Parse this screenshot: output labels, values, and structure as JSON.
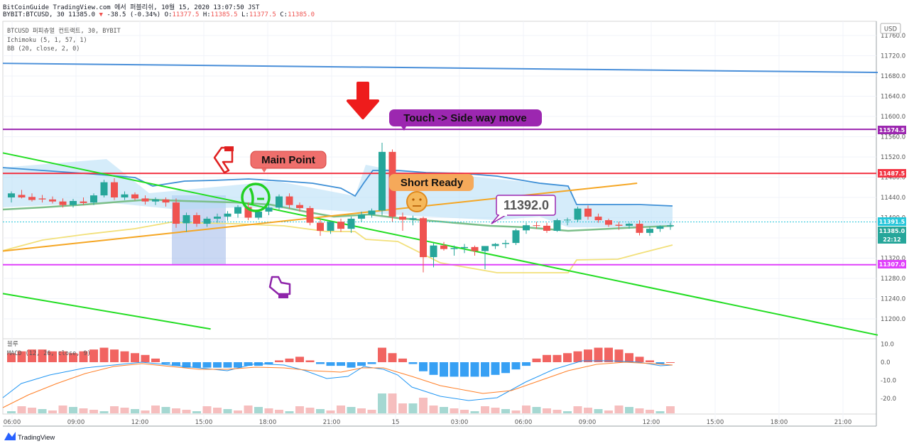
{
  "header": {
    "line1": "BitCoinGuide TradingView.com 에서 퍼블리쉬, 10월 15, 2020 13:07:50 JST",
    "symbol": "BYBIT:BTCUSD, 30",
    "price": "11385.0",
    "change": "-38.5 (-0.34%)",
    "o": "11377.5",
    "h": "11385.5",
    "l": "11377.5",
    "c": "11385.0"
  },
  "legend": {
    "title": "BTCUSD 퍼피츄얼 컨트랙트, 30, BYBIT",
    "ichimoku": "Ichimoku (5, 1, 57, 1)",
    "bb": "BB (20, close, 2, 0)",
    "macd": "MACD (12, 26, close, 9)",
    "macd_title": "블루"
  },
  "currency": "USD",
  "annotations": {
    "touch": "Touch -> Side way move",
    "main_point": "Main Point",
    "short_ready": "Short Ready",
    "price_box": "11392.0"
  },
  "price_tags": {
    "purple": "11574.5",
    "red": "11487.5",
    "cyan": "11391.5",
    "last": "11385.0",
    "countdown": "22:12",
    "magenta": "11307.0"
  },
  "footer": {
    "brand": "TradingView"
  },
  "colors": {
    "up": "#26a69a",
    "down": "#ef5350",
    "purple": "#9c27b0",
    "red": "#f23645",
    "magenta": "#e040fb",
    "blue": "#4a90e2",
    "green": "#22dd22",
    "orange": "#f5a623"
  },
  "chart_data": [
    {
      "type": "candlestick",
      "title": "BTCUSD 퍼피츄얼 컨트랙트, 30, BYBIT",
      "x_ticks": [
        "06:00",
        "09:00",
        "12:00",
        "15:00",
        "18:00",
        "21:00",
        "15",
        "03:00",
        "06:00",
        "09:00",
        "12:00",
        "15:00",
        "18:00",
        "21:00"
      ],
      "y_ticks": [
        11200,
        11240,
        11280,
        11320,
        11360,
        11400,
        11440,
        11480,
        11520,
        11560,
        11600,
        11640,
        11680,
        11720,
        11760
      ],
      "ylim": [
        11180,
        11775
      ],
      "ohlc": [
        [
          11440,
          11452,
          11430,
          11448
        ],
        [
          11445,
          11455,
          11438,
          11440
        ],
        [
          11441,
          11448,
          11432,
          11435
        ],
        [
          11438,
          11445,
          11430,
          11436
        ],
        [
          11436,
          11442,
          11428,
          11432
        ],
        [
          11432,
          11438,
          11420,
          11425
        ],
        [
          11425,
          11437,
          11420,
          11433
        ],
        [
          11432,
          11440,
          11425,
          11429
        ],
        [
          11430,
          11448,
          11425,
          11444
        ],
        [
          11444,
          11475,
          11440,
          11470
        ],
        [
          11470,
          11478,
          11435,
          11440
        ],
        [
          11440,
          11452,
          11435,
          11446
        ],
        [
          11446,
          11450,
          11434,
          11438
        ],
        [
          11438,
          11444,
          11426,
          11432
        ],
        [
          11432,
          11440,
          11425,
          11436
        ],
        [
          11436,
          11440,
          11422,
          11430
        ],
        [
          11430,
          11438,
          11380,
          11388
        ],
        [
          11389,
          11410,
          11372,
          11405
        ],
        [
          11405,
          11410,
          11382,
          11388
        ],
        [
          11388,
          11402,
          11382,
          11398
        ],
        [
          11398,
          11408,
          11390,
          11402
        ],
        [
          11402,
          11413,
          11394,
          11408
        ],
        [
          11408,
          11425,
          11400,
          11421
        ],
        [
          11421,
          11430,
          11395,
          11400
        ],
        [
          11400,
          11416,
          11396,
          11412
        ],
        [
          11412,
          11428,
          11405,
          11420
        ],
        [
          11420,
          11446,
          11416,
          11442
        ],
        [
          11442,
          11448,
          11418,
          11425
        ],
        [
          11425,
          11430,
          11412,
          11419
        ],
        [
          11419,
          11423,
          11385,
          11390
        ],
        [
          11390,
          11398,
          11364,
          11374
        ],
        [
          11374,
          11393,
          11368,
          11392
        ],
        [
          11392,
          11398,
          11372,
          11378
        ],
        [
          11378,
          11402,
          11370,
          11398
        ],
        [
          11398,
          11412,
          11392,
          11406
        ],
        [
          11406,
          11418,
          11400,
          11414
        ],
        [
          11414,
          11548,
          11405,
          11530
        ],
        [
          11530,
          11535,
          11392,
          11402
        ],
        [
          11402,
          11410,
          11374,
          11396
        ],
        [
          11396,
          11404,
          11385,
          11399
        ],
        [
          11399,
          11402,
          11292,
          11322
        ],
        [
          11322,
          11350,
          11302,
          11345
        ],
        [
          11345,
          11352,
          11335,
          11338
        ],
        [
          11338,
          11345,
          11325,
          11340
        ],
        [
          11340,
          11348,
          11330,
          11342
        ],
        [
          11342,
          11345,
          11325,
          11334
        ],
        [
          11334,
          11340,
          11298,
          11344
        ],
        [
          11344,
          11350,
          11338,
          11348
        ],
        [
          11348,
          11356,
          11340,
          11350
        ],
        [
          11350,
          11378,
          11346,
          11375
        ],
        [
          11375,
          11390,
          11368,
          11385
        ],
        [
          11385,
          11392,
          11378,
          11384
        ],
        [
          11384,
          11390,
          11370,
          11374
        ],
        [
          11374,
          11398,
          11372,
          11395
        ],
        [
          11395,
          11400,
          11385,
          11396
        ],
        [
          11396,
          11422,
          11392,
          11418
        ],
        [
          11418,
          11424,
          11396,
          11402
        ],
        [
          11402,
          11408,
          11390,
          11395
        ],
        [
          11395,
          11398,
          11382,
          11386
        ],
        [
          11386,
          11392,
          11376,
          11384
        ],
        [
          11384,
          11390,
          11378,
          11388
        ],
        [
          11388,
          11395,
          11365,
          11370
        ],
        [
          11370,
          11382,
          11364,
          11378
        ],
        [
          11378,
          11385,
          11372,
          11383
        ],
        [
          11383,
          11390,
          11376,
          11385
        ]
      ],
      "lines": {
        "resistance_blue": [
          [
            0,
            11705
          ],
          [
            80,
            11687
          ]
        ],
        "purple_level": 11574.5,
        "red_level": 11487.5,
        "magenta_level": 11307.0,
        "cyan_level": 11391.5,
        "green_trend_upper": [
          [
            0,
            11528
          ],
          [
            80,
            11168
          ]
        ],
        "green_trend_lower": [
          [
            0,
            11250
          ],
          [
            19,
            11180
          ]
        ],
        "orange_trend": [
          [
            0,
            11334
          ],
          [
            58,
            11468
          ]
        ]
      }
    },
    {
      "type": "bar",
      "title": "MACD (12, 26, close, 9)",
      "y_ticks": [
        -20.0,
        -10.0,
        0.0,
        10.0
      ],
      "ylim": [
        -27,
        13
      ],
      "histogram": [
        5,
        6,
        7,
        7,
        6,
        6,
        5,
        6,
        7,
        8,
        7,
        6,
        5,
        4,
        2,
        -1,
        -2,
        -3,
        -3,
        -3,
        -3,
        -3,
        -3,
        -2,
        -2,
        -1,
        1,
        2,
        3,
        1,
        -1,
        -2,
        -2,
        -3,
        -2,
        -1,
        8,
        5,
        2,
        -1,
        -5,
        -7,
        -8,
        -8,
        -8,
        -8,
        -8,
        -7,
        -6,
        -4,
        -2,
        2,
        4,
        4,
        5,
        6,
        7,
        8,
        8,
        7,
        5,
        3,
        1,
        -1,
        0
      ]
    }
  ]
}
